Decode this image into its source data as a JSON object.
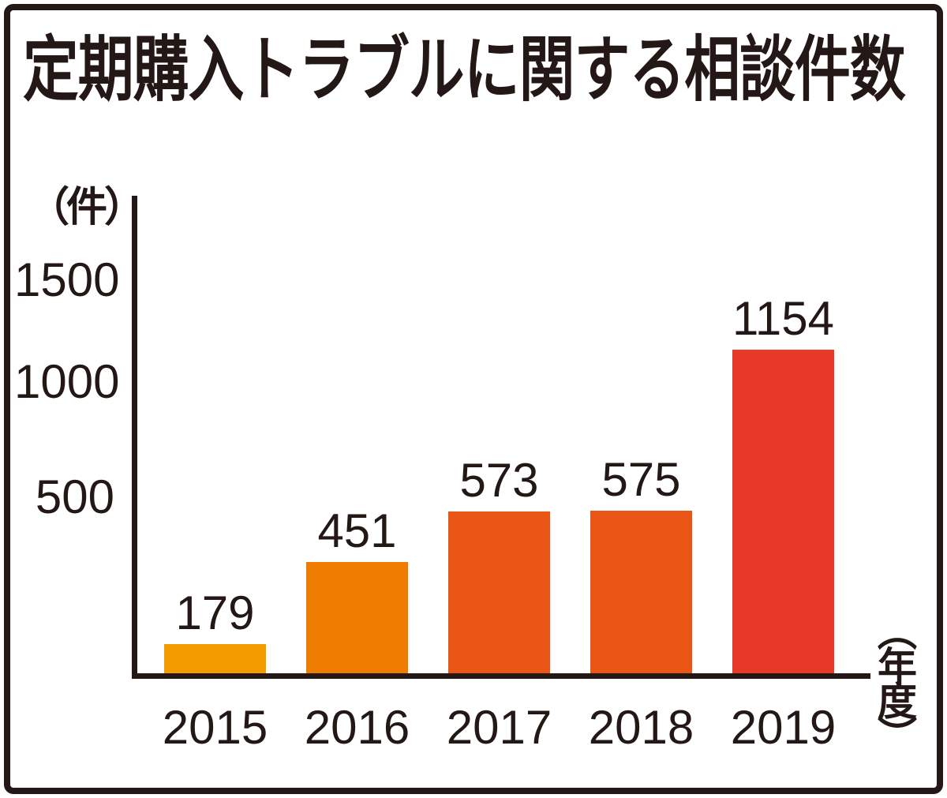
{
  "title": "定期購入トラブルに関する相談件数",
  "labels": {
    "y_unit": "（件）",
    "x_unit": "（年度）"
  },
  "chart_data": {
    "type": "bar",
    "title": "定期購入トラブルに関する相談件数",
    "categories": [
      "2015",
      "2016",
      "2017",
      "2018",
      "2019"
    ],
    "values": [
      179,
      451,
      573,
      575,
      1154
    ],
    "bar_labels": [
      "179",
      "451",
      "573",
      "575",
      "1154"
    ],
    "bar_colors": [
      "#F49B00",
      "#EE7C00",
      "#E95514",
      "#E95514",
      "#E83A28"
    ],
    "ylabel": "（件）",
    "xlabel": "（年度）",
    "yticks": [
      1500,
      1000,
      500
    ],
    "ytick_labels": [
      "1500",
      "1000",
      "500"
    ],
    "ylim": [
      0,
      1500
    ],
    "grid": false,
    "legend_position": null,
    "ink_color": "#231815",
    "value_labels_shown": true
  }
}
